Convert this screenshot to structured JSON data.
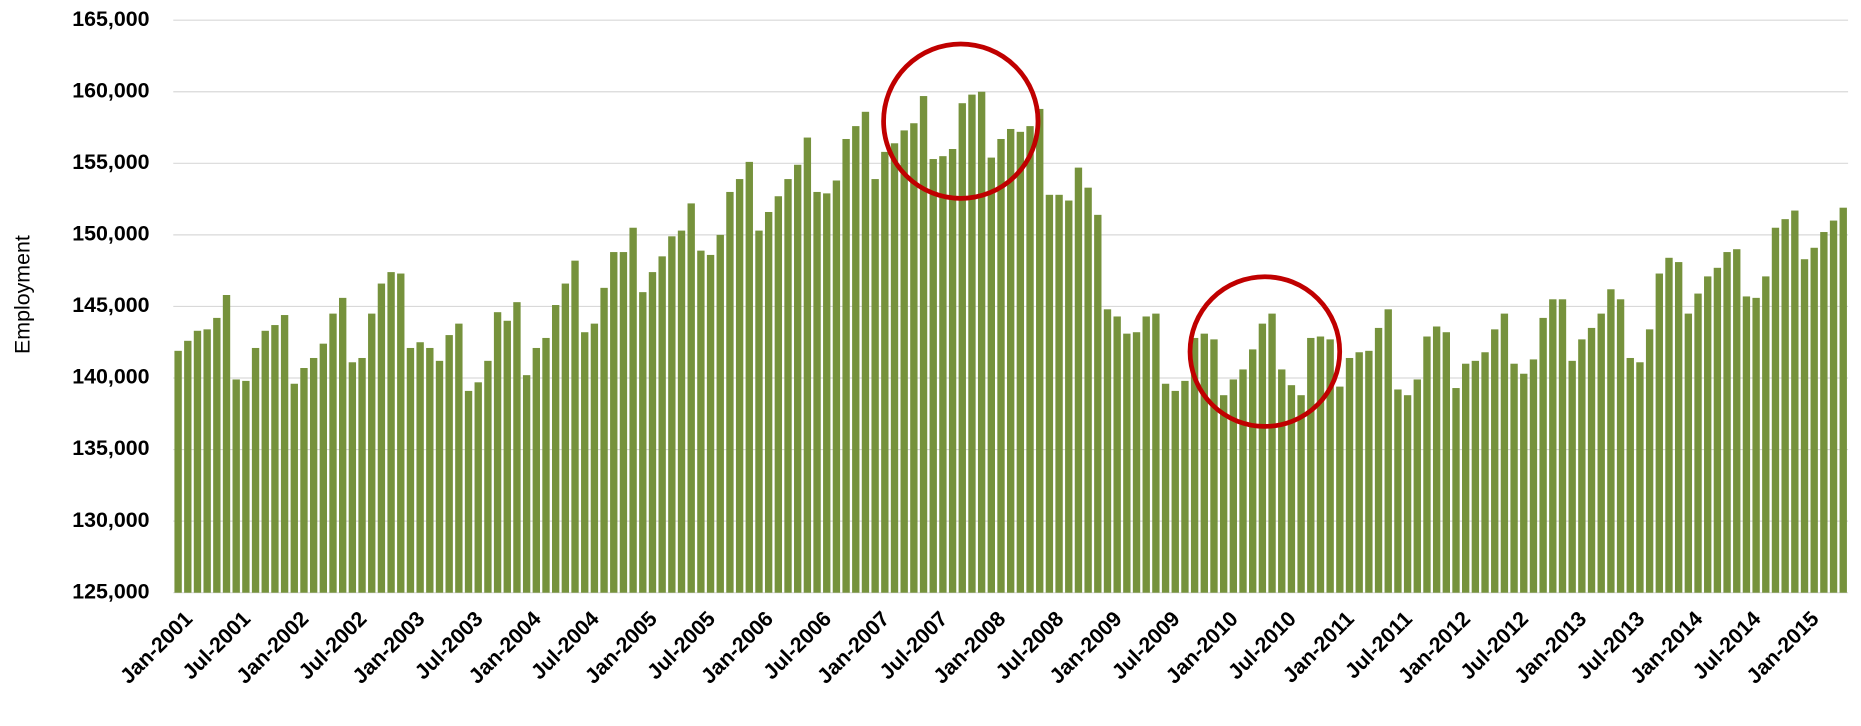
{
  "chart_data": {
    "type": "bar",
    "y_label": "Employment",
    "color": "#76923c",
    "grid": true,
    "ylim": [
      125000,
      165000
    ],
    "yticks": [
      {
        "value": 125000,
        "label": "125,000"
      },
      {
        "value": 130000,
        "label": "130,000"
      },
      {
        "value": 135000,
        "label": "135,000"
      },
      {
        "value": 140000,
        "label": "140,000"
      },
      {
        "value": 145000,
        "label": "145,000"
      },
      {
        "value": 150000,
        "label": "150,000"
      },
      {
        "value": 155000,
        "label": "155,000"
      },
      {
        "value": 160000,
        "label": "160,000"
      },
      {
        "value": 165000,
        "label": "165,000"
      }
    ],
    "categories": [
      "Jan-2001",
      null,
      null,
      null,
      null,
      null,
      "Jul-2001",
      null,
      null,
      null,
      null,
      null,
      "Jan-2002",
      null,
      null,
      null,
      null,
      null,
      "Jul-2002",
      null,
      null,
      null,
      null,
      null,
      "Jan-2003",
      null,
      null,
      null,
      null,
      null,
      "Jul-2003",
      null,
      null,
      null,
      null,
      null,
      "Jan-2004",
      null,
      null,
      null,
      null,
      null,
      "Jul-2004",
      null,
      null,
      null,
      null,
      null,
      "Jan-2005",
      null,
      null,
      null,
      null,
      null,
      "Jul-2005",
      null,
      null,
      null,
      null,
      null,
      "Jan-2006",
      null,
      null,
      null,
      null,
      null,
      "Jul-2006",
      null,
      null,
      null,
      null,
      null,
      "Jan-2007",
      null,
      null,
      null,
      null,
      null,
      "Jul-2007",
      null,
      null,
      null,
      null,
      null,
      "Jan-2008",
      null,
      null,
      null,
      null,
      null,
      "Jul-2008",
      null,
      null,
      null,
      null,
      null,
      "Jan-2009",
      null,
      null,
      null,
      null,
      null,
      "Jul-2009",
      null,
      null,
      null,
      null,
      null,
      "Jan-2010",
      null,
      null,
      null,
      null,
      null,
      "Jul-2010",
      null,
      null,
      null,
      null,
      null,
      "Jan-2011",
      null,
      null,
      null,
      null,
      null,
      "Jul-2011",
      null,
      null,
      null,
      null,
      null,
      "Jan-2012",
      null,
      null,
      null,
      null,
      null,
      "Jul-2012",
      null,
      null,
      null,
      null,
      null,
      "Jan-2013",
      null,
      null,
      null,
      null,
      null,
      "Jul-2013",
      null,
      null,
      null,
      null,
      null,
      "Jan-2014",
      null,
      null,
      null,
      null,
      null,
      "Jul-2014",
      null,
      null,
      null,
      null,
      null,
      "Jan-2015",
      null,
      null,
      null,
      null
    ],
    "values": [
      141900,
      142600,
      143300,
      143400,
      144200,
      145800,
      139900,
      139800,
      142100,
      143300,
      143700,
      144400,
      139600,
      140700,
      141400,
      142400,
      144500,
      145600,
      141100,
      141400,
      144500,
      146600,
      147400,
      147300,
      142100,
      142500,
      142100,
      141200,
      143000,
      143800,
      139100,
      139700,
      141200,
      144600,
      144000,
      145300,
      140200,
      142100,
      142800,
      145100,
      146600,
      148200,
      143200,
      143800,
      146300,
      148800,
      148800,
      150500,
      146000,
      147400,
      148500,
      149900,
      150300,
      152200,
      148900,
      148600,
      150000,
      153000,
      153900,
      155100,
      150300,
      151600,
      152700,
      153900,
      154900,
      156800,
      153000,
      152900,
      153800,
      156700,
      157600,
      158600,
      153900,
      155800,
      156400,
      157300,
      157800,
      159700,
      155300,
      155500,
      156000,
      159200,
      159800,
      160000,
      155400,
      156700,
      157400,
      157200,
      157600,
      158800,
      152800,
      152800,
      152400,
      154700,
      153300,
      151400,
      144800,
      144300,
      143100,
      143200,
      144300,
      144500,
      139600,
      139100,
      139800,
      142800,
      143100,
      142700,
      138800,
      139900,
      140600,
      142000,
      143800,
      144500,
      140600,
      139500,
      138800,
      142800,
      142900,
      142700,
      139400,
      141400,
      141800,
      141900,
      143500,
      144800,
      139200,
      138800,
      139900,
      142900,
      143600,
      143200,
      139300,
      141000,
      141200,
      141800,
      143400,
      144500,
      141000,
      140300,
      141300,
      144200,
      145500,
      145500,
      141200,
      142700,
      143500,
      144500,
      146200,
      145500,
      141400,
      141100,
      143400,
      147300,
      148400,
      148100,
      144500,
      145900,
      147100,
      147700,
      148800,
      149000,
      145700,
      145600,
      147100,
      150500,
      151100,
      151700,
      148300,
      149100,
      150200,
      151000,
      151900
    ]
  }
}
